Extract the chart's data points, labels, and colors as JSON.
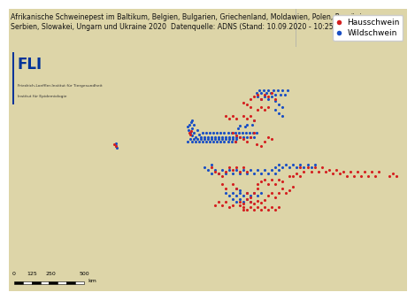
{
  "title_line1": "Afrikanische Schweinepest im Baltikum, Belgien, Bulgarien, Griechenland, Moldawien, Polen, Rumänien,",
  "title_line2": "Serbien, Slowakei, Ungarn und Ukraine 2020",
  "datasource": "Datenquelle: ADNS (Stand: 10.09.2020 - 10:25 Uhr)",
  "legend_hauschwein": "Hausschwein",
  "legend_wildschwein": "Wildschwein",
  "color_haus": "#d42020",
  "color_wild": "#1a4fc4",
  "fli_label": "FLI",
  "fli_sub1": "Friedrich-Loeffler-Institut für Tiergesundheit",
  "fli_sub2": "Institut für Epidemiologie",
  "scale_values": "0   125  250         500",
  "scale_unit": "km",
  "lon_min": -11,
  "lon_max": 45,
  "lat_min": 34,
  "lat_max": 67,
  "hauschwein_points": [
    [
      14.4,
      52.5
    ],
    [
      14.5,
      52.3
    ],
    [
      14.6,
      52.7
    ],
    [
      21.0,
      52.2
    ],
    [
      20.5,
      52.5
    ],
    [
      21.5,
      52.0
    ],
    [
      22.0,
      51.8
    ],
    [
      20.8,
      51.5
    ],
    [
      22.5,
      51.5
    ],
    [
      23.0,
      52.0
    ],
    [
      23.5,
      52.5
    ],
    [
      23.8,
      51.2
    ],
    [
      24.5,
      51.0
    ],
    [
      25.0,
      51.5
    ],
    [
      25.5,
      52.0
    ],
    [
      26.0,
      51.8
    ],
    [
      21.5,
      44.5
    ],
    [
      22.0,
      44.2
    ],
    [
      22.5,
      44.8
    ],
    [
      23.0,
      44.5
    ],
    [
      23.5,
      44.2
    ],
    [
      24.0,
      44.6
    ],
    [
      24.5,
      44.3
    ],
    [
      25.0,
      44.7
    ],
    [
      25.5,
      45.2
    ],
    [
      26.0,
      45.5
    ],
    [
      26.5,
      45.0
    ],
    [
      27.0,
      45.5
    ],
    [
      27.5,
      46.0
    ],
    [
      28.0,
      45.5
    ],
    [
      28.5,
      45.8
    ],
    [
      29.0,
      46.2
    ],
    [
      24.0,
      46.5
    ],
    [
      24.5,
      46.8
    ],
    [
      25.0,
      47.0
    ],
    [
      25.5,
      46.5
    ],
    [
      26.0,
      47.0
    ],
    [
      26.5,
      46.5
    ],
    [
      27.0,
      47.0
    ],
    [
      27.5,
      46.8
    ],
    [
      22.5,
      45.5
    ],
    [
      23.0,
      45.0
    ],
    [
      23.5,
      45.5
    ],
    [
      24.0,
      46.0
    ],
    [
      22.0,
      43.8
    ],
    [
      22.5,
      43.5
    ],
    [
      23.0,
      43.8
    ],
    [
      23.5,
      43.5
    ],
    [
      24.0,
      43.8
    ],
    [
      24.5,
      43.5
    ],
    [
      25.0,
      43.8
    ],
    [
      25.5,
      43.5
    ],
    [
      26.0,
      43.8
    ],
    [
      26.5,
      43.5
    ],
    [
      27.0,
      43.8
    ],
    [
      19.5,
      48.0
    ],
    [
      20.0,
      48.5
    ],
    [
      20.5,
      48.2
    ],
    [
      21.0,
      48.5
    ],
    [
      21.5,
      48.0
    ],
    [
      22.0,
      48.5
    ],
    [
      22.5,
      48.0
    ],
    [
      17.5,
      48.5
    ],
    [
      18.0,
      48.0
    ],
    [
      18.5,
      47.8
    ],
    [
      19.0,
      47.5
    ],
    [
      20.5,
      46.5
    ],
    [
      21.0,
      46.0
    ],
    [
      19.5,
      46.0
    ],
    [
      19.0,
      46.5
    ],
    [
      21.5,
      44.0
    ],
    [
      22.0,
      43.5
    ],
    [
      20.5,
      44.0
    ],
    [
      20.0,
      43.8
    ],
    [
      19.5,
      44.5
    ],
    [
      19.0,
      44.0
    ],
    [
      18.5,
      44.5
    ],
    [
      18.0,
      44.0
    ],
    [
      3.8,
      51.2
    ],
    [
      4.0,
      51.0
    ],
    [
      23.0,
      56.5
    ],
    [
      23.5,
      56.8
    ],
    [
      24.0,
      57.0
    ],
    [
      24.5,
      56.5
    ],
    [
      25.0,
      57.0
    ],
    [
      25.5,
      56.8
    ],
    [
      26.0,
      57.2
    ],
    [
      26.5,
      56.5
    ],
    [
      22.0,
      56.0
    ],
    [
      22.5,
      55.8
    ],
    [
      23.0,
      55.5
    ],
    [
      24.0,
      55.2
    ],
    [
      24.5,
      55.5
    ],
    [
      25.0,
      55.2
    ],
    [
      25.5,
      55.5
    ],
    [
      22.0,
      54.5
    ],
    [
      22.5,
      54.2
    ],
    [
      23.0,
      54.5
    ],
    [
      23.5,
      54.0
    ],
    [
      21.0,
      54.2
    ],
    [
      20.5,
      54.5
    ],
    [
      20.0,
      54.2
    ],
    [
      19.5,
      54.5
    ],
    [
      38.0,
      48.0
    ],
    [
      38.5,
      47.5
    ],
    [
      39.0,
      48.0
    ],
    [
      39.5,
      47.5
    ],
    [
      40.0,
      48.0
    ],
    [
      40.5,
      47.5
    ],
    [
      41.0,
      48.0
    ],
    [
      36.0,
      48.0
    ],
    [
      36.5,
      47.5
    ],
    [
      37.0,
      48.0
    ],
    [
      37.5,
      47.5
    ],
    [
      34.0,
      48.2
    ],
    [
      34.5,
      47.8
    ],
    [
      35.0,
      48.2
    ],
    [
      35.5,
      47.8
    ],
    [
      32.0,
      48.5
    ],
    [
      32.5,
      48.0
    ],
    [
      33.0,
      48.5
    ],
    [
      33.5,
      48.0
    ],
    [
      30.0,
      48.5
    ],
    [
      30.5,
      48.0
    ],
    [
      31.0,
      48.5
    ],
    [
      31.5,
      48.0
    ],
    [
      28.5,
      47.5
    ],
    [
      29.0,
      47.5
    ],
    [
      29.5,
      47.8
    ],
    [
      30.0,
      47.5
    ],
    [
      42.5,
      47.5
    ],
    [
      43.0,
      47.8
    ],
    [
      43.5,
      47.5
    ]
  ],
  "wildschwein_points": [
    [
      14.3,
      52.8
    ],
    [
      14.5,
      52.5
    ],
    [
      14.7,
      52.2
    ],
    [
      14.8,
      53.0
    ],
    [
      15.0,
      52.5
    ],
    [
      15.3,
      52.0
    ],
    [
      15.5,
      52.8
    ],
    [
      15.8,
      52.3
    ],
    [
      16.0,
      52.0
    ],
    [
      16.3,
      52.5
    ],
    [
      16.5,
      52.0
    ],
    [
      16.8,
      52.5
    ],
    [
      17.0,
      52.0
    ],
    [
      17.3,
      52.5
    ],
    [
      17.5,
      52.0
    ],
    [
      17.8,
      52.5
    ],
    [
      18.0,
      52.0
    ],
    [
      18.3,
      52.5
    ],
    [
      18.5,
      52.0
    ],
    [
      18.8,
      52.5
    ],
    [
      19.0,
      52.0
    ],
    [
      19.3,
      52.5
    ],
    [
      19.5,
      52.0
    ],
    [
      19.8,
      52.5
    ],
    [
      20.0,
      52.0
    ],
    [
      20.3,
      52.5
    ],
    [
      20.5,
      52.0
    ],
    [
      20.8,
      52.5
    ],
    [
      21.0,
      52.0
    ],
    [
      21.3,
      52.5
    ],
    [
      21.5,
      52.0
    ],
    [
      21.8,
      52.5
    ],
    [
      22.0,
      52.0
    ],
    [
      22.3,
      52.5
    ],
    [
      22.5,
      52.0
    ],
    [
      22.8,
      52.5
    ],
    [
      23.0,
      52.0
    ],
    [
      23.3,
      52.5
    ],
    [
      23.5,
      52.0
    ],
    [
      23.8,
      52.5
    ],
    [
      14.2,
      51.5
    ],
    [
      14.5,
      51.8
    ],
    [
      14.8,
      51.5
    ],
    [
      15.0,
      51.8
    ],
    [
      15.3,
      51.5
    ],
    [
      15.5,
      51.8
    ],
    [
      15.8,
      51.5
    ],
    [
      16.0,
      51.8
    ],
    [
      16.3,
      51.5
    ],
    [
      16.5,
      51.8
    ],
    [
      16.8,
      51.5
    ],
    [
      17.0,
      51.8
    ],
    [
      17.3,
      51.5
    ],
    [
      17.5,
      51.8
    ],
    [
      17.8,
      51.5
    ],
    [
      18.0,
      51.8
    ],
    [
      18.3,
      51.5
    ],
    [
      18.5,
      51.8
    ],
    [
      18.8,
      51.5
    ],
    [
      19.0,
      51.8
    ],
    [
      19.3,
      51.5
    ],
    [
      19.5,
      51.8
    ],
    [
      19.8,
      51.5
    ],
    [
      20.0,
      51.8
    ],
    [
      20.3,
      51.5
    ],
    [
      20.5,
      51.8
    ],
    [
      20.8,
      51.5
    ],
    [
      21.0,
      51.8
    ],
    [
      14.2,
      53.2
    ],
    [
      14.4,
      53.5
    ],
    [
      14.6,
      53.8
    ],
    [
      14.8,
      54.0
    ],
    [
      15.0,
      53.5
    ],
    [
      23.8,
      57.2
    ],
    [
      24.2,
      57.5
    ],
    [
      24.5,
      57.2
    ],
    [
      24.8,
      57.5
    ],
    [
      25.2,
      57.2
    ],
    [
      25.5,
      57.5
    ],
    [
      25.8,
      57.2
    ],
    [
      26.2,
      57.5
    ],
    [
      26.5,
      57.0
    ],
    [
      26.8,
      57.5
    ],
    [
      27.2,
      57.0
    ],
    [
      27.5,
      57.5
    ],
    [
      27.8,
      57.0
    ],
    [
      28.2,
      57.5
    ],
    [
      24.0,
      56.8
    ],
    [
      24.5,
      56.5
    ],
    [
      25.0,
      56.8
    ],
    [
      25.5,
      56.5
    ],
    [
      26.0,
      56.8
    ],
    [
      26.5,
      56.2
    ],
    [
      27.0,
      55.8
    ],
    [
      27.5,
      55.5
    ],
    [
      26.5,
      55.2
    ],
    [
      27.0,
      54.8
    ],
    [
      27.5,
      54.5
    ],
    [
      23.2,
      53.5
    ],
    [
      23.5,
      54.0
    ],
    [
      22.2,
      53.2
    ],
    [
      22.5,
      53.5
    ],
    [
      21.2,
      53.0
    ],
    [
      21.5,
      53.3
    ],
    [
      21.5,
      47.8
    ],
    [
      22.0,
      48.2
    ],
    [
      22.5,
      47.8
    ],
    [
      23.0,
      48.2
    ],
    [
      23.5,
      47.8
    ],
    [
      24.0,
      48.2
    ],
    [
      24.5,
      47.8
    ],
    [
      25.0,
      48.2
    ],
    [
      25.5,
      47.8
    ],
    [
      26.0,
      48.2
    ],
    [
      26.5,
      47.8
    ],
    [
      27.0,
      48.2
    ],
    [
      17.0,
      48.2
    ],
    [
      17.5,
      47.8
    ],
    [
      18.0,
      48.2
    ],
    [
      18.5,
      47.8
    ],
    [
      19.0,
      48.2
    ],
    [
      19.5,
      47.8
    ],
    [
      20.0,
      48.2
    ],
    [
      20.5,
      47.8
    ],
    [
      21.0,
      48.2
    ],
    [
      16.5,
      48.5
    ],
    [
      17.5,
      48.8
    ],
    [
      4.0,
      51.0
    ],
    [
      4.2,
      50.8
    ],
    [
      4.0,
      51.3
    ],
    [
      21.0,
      45.2
    ],
    [
      21.5,
      45.5
    ],
    [
      22.0,
      45.2
    ],
    [
      22.5,
      45.5
    ],
    [
      23.0,
      45.2
    ],
    [
      23.5,
      45.5
    ],
    [
      24.0,
      45.2
    ],
    [
      24.5,
      45.5
    ],
    [
      20.5,
      45.5
    ],
    [
      21.0,
      46.0
    ],
    [
      21.5,
      45.8
    ],
    [
      20.0,
      45.2
    ],
    [
      19.5,
      45.5
    ],
    [
      20.5,
      44.8
    ],
    [
      21.0,
      44.5
    ],
    [
      21.5,
      44.8
    ],
    [
      22.0,
      44.5
    ],
    [
      22.5,
      44.8
    ],
    [
      23.0,
      44.5
    ],
    [
      26.5,
      48.5
    ],
    [
      27.0,
      48.8
    ],
    [
      27.5,
      48.5
    ],
    [
      28.0,
      48.8
    ],
    [
      28.5,
      48.5
    ],
    [
      29.0,
      48.8
    ],
    [
      29.5,
      48.5
    ],
    [
      30.0,
      48.8
    ],
    [
      30.5,
      48.5
    ],
    [
      31.0,
      48.8
    ],
    [
      31.5,
      48.5
    ],
    [
      32.0,
      48.8
    ]
  ]
}
